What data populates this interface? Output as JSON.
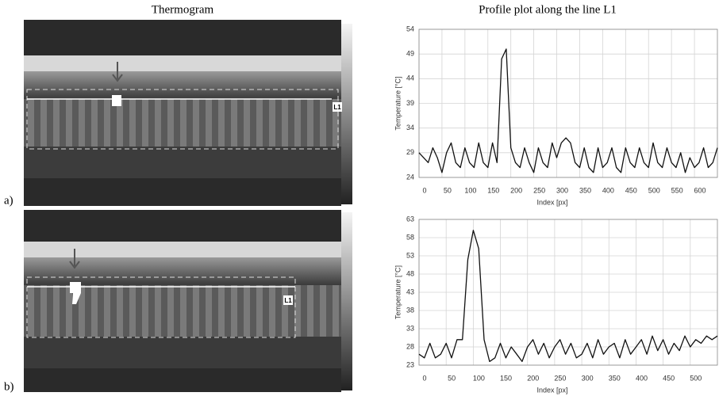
{
  "headings": {
    "left": "Thermogram",
    "right": "Profile plot along the line L1"
  },
  "panels": [
    {
      "label": "a)",
      "line_label": "L1"
    },
    {
      "label": "b)",
      "line_label": "L1"
    }
  ],
  "chart_data": [
    {
      "type": "line",
      "x_label": "Index [px]",
      "y_label": "Temperature [°C]",
      "x": [
        0,
        10,
        20,
        30,
        40,
        50,
        60,
        70,
        80,
        90,
        100,
        110,
        120,
        130,
        140,
        150,
        160,
        170,
        180,
        190,
        200,
        210,
        220,
        230,
        240,
        250,
        260,
        270,
        280,
        290,
        300,
        310,
        320,
        330,
        340,
        350,
        360,
        370,
        380,
        390,
        400,
        410,
        420,
        430,
        440,
        450,
        460,
        470,
        480,
        490,
        500,
        510,
        520,
        530,
        540,
        550,
        560,
        570,
        580,
        590,
        600,
        610,
        620,
        630,
        640,
        650
      ],
      "series": [
        {
          "color": "#111111",
          "values": [
            29,
            28,
            27,
            30,
            28,
            25,
            29,
            31,
            27,
            26,
            30,
            27,
            26,
            31,
            27,
            26,
            31,
            27,
            48,
            50,
            30,
            27,
            26,
            30,
            27,
            25,
            30,
            27,
            26,
            31,
            28,
            31,
            32,
            31,
            27,
            26,
            30,
            26,
            25,
            30,
            26,
            27,
            30,
            26,
            25,
            30,
            27,
            26,
            30,
            27,
            26,
            31,
            27,
            26,
            30,
            27,
            26,
            29,
            25,
            28,
            26,
            27,
            30,
            26,
            27,
            30
          ]
        }
      ],
      "xlim": [
        0,
        650
      ],
      "ylim": [
        24,
        54
      ],
      "xticks": [
        0,
        50,
        100,
        150,
        200,
        250,
        300,
        350,
        400,
        450,
        500,
        550,
        600
      ],
      "yticks": [
        24,
        29,
        34,
        39,
        44,
        49,
        54
      ],
      "grid": true
    },
    {
      "type": "line",
      "x_label": "Index [px]",
      "y_label": "Temperature [°C]",
      "x": [
        0,
        10,
        20,
        30,
        40,
        50,
        60,
        70,
        80,
        90,
        100,
        110,
        120,
        130,
        140,
        150,
        160,
        170,
        180,
        190,
        200,
        210,
        220,
        230,
        240,
        250,
        260,
        270,
        280,
        290,
        300,
        310,
        320,
        330,
        340,
        350,
        360,
        370,
        380,
        390,
        400,
        410,
        420,
        430,
        440,
        450,
        460,
        470,
        480,
        490,
        500,
        510,
        520,
        530,
        540,
        550
      ],
      "series": [
        {
          "color": "#111111",
          "values": [
            26,
            25,
            29,
            25,
            26,
            29,
            25,
            30,
            30,
            52,
            60,
            55,
            30,
            24,
            25,
            29,
            25,
            28,
            26,
            24,
            28,
            30,
            26,
            29,
            25,
            28,
            30,
            26,
            29,
            25,
            26,
            29,
            25,
            30,
            26,
            28,
            29,
            25,
            30,
            26,
            28,
            30,
            26,
            31,
            27,
            30,
            26,
            29,
            27,
            31,
            28,
            30,
            29,
            31,
            30,
            31
          ]
        }
      ],
      "xlim": [
        0,
        550
      ],
      "ylim": [
        23,
        63
      ],
      "xticks": [
        0,
        50,
        100,
        150,
        200,
        250,
        300,
        350,
        400,
        450,
        500
      ],
      "yticks": [
        23,
        28,
        33,
        38,
        43,
        48,
        53,
        58,
        63
      ],
      "grid": true
    }
  ]
}
